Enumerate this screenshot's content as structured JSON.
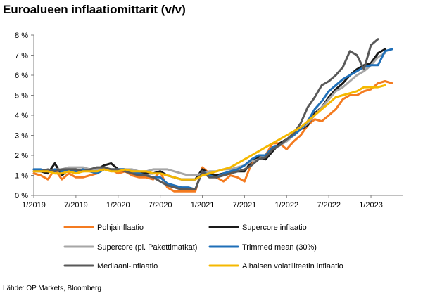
{
  "chart_data": {
    "type": "line",
    "title": "Euroalueen inflaatiomittarit (v/v)",
    "ylabel": "",
    "xlabel": "",
    "ylim": [
      0,
      8
    ],
    "yticks": [
      "0 %",
      "1 %",
      "2 %",
      "3 %",
      "4 %",
      "5 %",
      "6 %",
      "7 %",
      "8 %"
    ],
    "xticks": [
      {
        "index": 0,
        "label": "1/2019"
      },
      {
        "index": 6,
        "label": "7/2019"
      },
      {
        "index": 12,
        "label": "1/2020"
      },
      {
        "index": 18,
        "label": "7/2020"
      },
      {
        "index": 24,
        "label": "1/2021"
      },
      {
        "index": 30,
        "label": "7/2021"
      },
      {
        "index": 36,
        "label": "1/2022"
      },
      {
        "index": 42,
        "label": "7/2022"
      },
      {
        "index": 48,
        "label": "1/2023"
      }
    ],
    "series": [
      {
        "name": "Pohjainflaatio",
        "color": "#F47B20",
        "values": [
          1.1,
          1.0,
          0.8,
          1.3,
          0.8,
          1.1,
          0.9,
          0.9,
          1.0,
          1.1,
          1.3,
          1.3,
          1.1,
          1.2,
          1.0,
          0.9,
          0.9,
          0.8,
          1.2,
          0.4,
          0.2,
          0.2,
          0.2,
          0.2,
          1.4,
          1.1,
          0.9,
          0.7,
          1.0,
          0.9,
          0.7,
          1.6,
          1.9,
          2.0,
          2.6,
          2.6,
          2.3,
          2.7,
          3.0,
          3.5,
          3.8,
          3.7,
          4.0,
          4.3,
          4.8,
          5.0,
          5.0,
          5.2,
          5.3,
          5.6,
          5.7,
          5.6
        ]
      },
      {
        "name": "Supercore inflaatio",
        "color": "#1A1A1A",
        "values": [
          1.3,
          1.2,
          1.1,
          1.6,
          1.0,
          1.3,
          1.2,
          1.3,
          1.3,
          1.3,
          1.5,
          1.6,
          1.3,
          1.3,
          1.2,
          1.2,
          1.1,
          1.1,
          1.2,
          1.0,
          0.9,
          0.8,
          0.8,
          0.8,
          1.3,
          1.1,
          1.0,
          1.1,
          1.1,
          1.2,
          1.2,
          1.7,
          1.9,
          1.8,
          2.2,
          2.6,
          2.8,
          3.0,
          3.3,
          3.5,
          4.1,
          4.4,
          4.9,
          5.3,
          5.6,
          6.0,
          6.3,
          6.5,
          6.6,
          7.1,
          7.3
        ]
      },
      {
        "name": "Supercore (pl. Pakettimatkat)",
        "color": "#A6A6A6",
        "values": [
          1.2,
          1.3,
          1.2,
          1.3,
          1.3,
          1.4,
          1.4,
          1.4,
          1.3,
          1.3,
          1.3,
          1.3,
          1.3,
          1.3,
          1.3,
          1.2,
          1.2,
          1.3,
          1.3,
          1.3,
          1.2,
          1.1,
          1.0,
          1.0,
          1.1,
          1.2,
          1.2,
          1.3,
          1.3,
          1.4,
          1.5,
          1.7,
          1.8,
          2.0,
          2.3,
          2.5,
          2.7,
          3.0,
          3.3,
          3.6,
          4.0,
          4.4,
          4.8,
          5.2,
          5.4,
          5.7,
          6.0,
          6.2,
          6.5,
          6.9,
          7.1
        ]
      },
      {
        "name": "Trimmed mean (30%)",
        "color": "#1F6FB8",
        "values": [
          1.3,
          1.3,
          1.2,
          1.3,
          1.2,
          1.3,
          1.2,
          1.3,
          1.2,
          1.1,
          1.3,
          1.3,
          1.3,
          1.3,
          1.2,
          1.1,
          1.0,
          0.9,
          0.9,
          0.6,
          0.5,
          0.4,
          0.4,
          0.3,
          1.2,
          1.0,
          0.9,
          1.1,
          1.2,
          1.3,
          1.5,
          1.8,
          2.0,
          2.0,
          2.4,
          2.5,
          2.8,
          3.0,
          3.3,
          3.7,
          4.3,
          4.7,
          5.2,
          5.5,
          5.8,
          6.0,
          6.2,
          6.4,
          6.5,
          6.5,
          7.2,
          7.3
        ]
      },
      {
        "name": "Mediaani-inflaatio",
        "color": "#595959",
        "values": [
          1.2,
          1.2,
          1.3,
          1.2,
          1.3,
          1.3,
          1.3,
          1.2,
          1.3,
          1.4,
          1.4,
          1.3,
          1.3,
          1.2,
          1.1,
          1.0,
          1.0,
          0.9,
          0.7,
          0.5,
          0.4,
          0.3,
          0.3,
          0.3,
          1.2,
          0.9,
          0.9,
          1.0,
          1.1,
          1.2,
          1.3,
          1.5,
          1.8,
          1.9,
          2.3,
          2.5,
          2.8,
          3.1,
          3.6,
          4.4,
          4.9,
          5.5,
          5.7,
          6.0,
          6.4,
          7.2,
          7.0,
          6.3,
          7.5,
          7.8
        ]
      },
      {
        "name": "Alhaisen volatiliteetin inflaatio",
        "color": "#F5B800",
        "values": [
          1.2,
          1.2,
          1.2,
          1.1,
          1.1,
          1.2,
          1.1,
          1.2,
          1.2,
          1.2,
          1.3,
          1.2,
          1.2,
          1.3,
          1.2,
          1.2,
          1.2,
          1.1,
          1.1,
          1.0,
          0.9,
          0.8,
          0.8,
          0.8,
          1.0,
          1.1,
          1.2,
          1.3,
          1.4,
          1.6,
          1.8,
          2.0,
          2.2,
          2.4,
          2.6,
          2.8,
          3.0,
          3.2,
          3.4,
          3.7,
          4.0,
          4.3,
          4.6,
          4.9,
          5.0,
          5.1,
          5.2,
          5.4,
          5.4,
          5.4,
          5.5
        ]
      }
    ]
  },
  "source": "Lähde: OP Markets, Bloomberg"
}
